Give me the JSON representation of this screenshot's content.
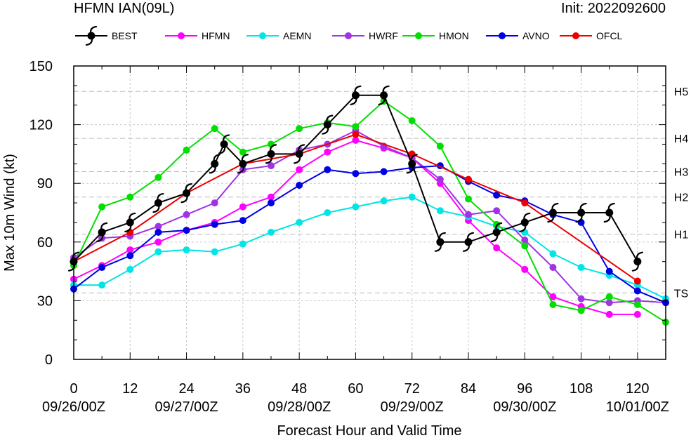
{
  "header": {
    "title": "HFMN IAN(09L)",
    "init": "Init: 2022092600"
  },
  "chart_data": {
    "type": "line",
    "xlabel": "Forecast Hour and Valid Time",
    "ylabel": "Max 10m Wind (kt)",
    "xlim": [
      0,
      126
    ],
    "ylim": [
      0,
      150
    ],
    "x_ticks": [
      0,
      12,
      24,
      36,
      48,
      60,
      72,
      84,
      96,
      108,
      120
    ],
    "y_ticks": [
      0,
      30,
      60,
      90,
      120,
      150
    ],
    "date_labels": [
      {
        "x": 0,
        "label": "09/26/00Z"
      },
      {
        "x": 24,
        "label": "09/27/00Z"
      },
      {
        "x": 48,
        "label": "09/28/00Z"
      },
      {
        "x": 72,
        "label": "09/29/00Z"
      },
      {
        "x": 96,
        "label": "09/30/00Z"
      },
      {
        "x": 120,
        "label": "10/01/00Z"
      }
    ],
    "category_lines": [
      {
        "label": "TS",
        "y": 34
      },
      {
        "label": "H1",
        "y": 64
      },
      {
        "label": "H2",
        "y": 83
      },
      {
        "label": "H3",
        "y": 96
      },
      {
        "label": "H4",
        "y": 113
      },
      {
        "label": "H5",
        "y": 137
      }
    ],
    "grid": true,
    "legend_position": "top",
    "series": [
      {
        "name": "BEST",
        "color": "#000000",
        "x": [
          0,
          6,
          12,
          18,
          24,
          30,
          32,
          36,
          42,
          48,
          54,
          60,
          66,
          72,
          78,
          84,
          90,
          96,
          102,
          108,
          114,
          120
        ],
        "y": [
          50,
          65,
          70,
          80,
          85,
          100,
          110,
          100,
          105,
          105,
          120,
          135,
          135,
          100,
          60,
          60,
          65,
          70,
          75,
          75,
          75,
          50
        ]
      },
      {
        "name": "HFMN",
        "color": "#ff00ff",
        "x": [
          0,
          6,
          12,
          18,
          24,
          30,
          36,
          42,
          48,
          54,
          60,
          66,
          72,
          78,
          84,
          90,
          96,
          102,
          108,
          114,
          120
        ],
        "y": [
          41,
          48,
          56,
          60,
          66,
          70,
          78,
          83,
          97,
          106,
          112,
          108,
          103,
          90,
          71,
          57,
          46,
          32,
          27,
          23,
          23
        ]
      },
      {
        "name": "AEMN",
        "color": "#00e5e5",
        "x": [
          0,
          6,
          12,
          18,
          24,
          30,
          36,
          42,
          48,
          54,
          60,
          66,
          72,
          78,
          84,
          90,
          96,
          102,
          108,
          114,
          120,
          126
        ],
        "y": [
          38,
          38,
          46,
          55,
          56,
          55,
          59,
          65,
          70,
          75,
          78,
          81,
          83,
          76,
          73,
          68,
          65,
          54,
          47,
          43,
          38,
          31
        ]
      },
      {
        "name": "HWRF",
        "color": "#a033e5",
        "x": [
          0,
          6,
          12,
          18,
          24,
          30,
          36,
          42,
          48,
          54,
          60,
          66,
          72,
          78,
          84,
          90,
          96,
          102,
          108,
          114,
          120,
          126
        ],
        "y": [
          52,
          62,
          63,
          68,
          74,
          80,
          97,
          99,
          107,
          110,
          117,
          109,
          103,
          92,
          74,
          76,
          61,
          47,
          31,
          29,
          30,
          29
        ]
      },
      {
        "name": "HMON",
        "color": "#00e000",
        "x": [
          0,
          6,
          12,
          18,
          24,
          30,
          36,
          42,
          48,
          54,
          60,
          66,
          72,
          78,
          84,
          90,
          96,
          102,
          108,
          114,
          120,
          126
        ],
        "y": [
          48,
          78,
          83,
          93,
          107,
          118,
          106,
          110,
          118,
          121,
          119,
          132,
          122,
          109,
          82,
          69,
          58,
          28,
          25,
          32,
          28,
          19
        ]
      },
      {
        "name": "AVNO",
        "color": "#0000e5",
        "x": [
          0,
          6,
          12,
          18,
          24,
          30,
          36,
          42,
          48,
          54,
          60,
          66,
          72,
          78,
          84,
          90,
          96,
          102,
          108,
          114,
          120,
          126
        ],
        "y": [
          36,
          47,
          53,
          65,
          66,
          69,
          71,
          80,
          89,
          97,
          95,
          96,
          98,
          99,
          91,
          84,
          81,
          74,
          70,
          45,
          35,
          29
        ]
      },
      {
        "name": "OFCL",
        "color": "#ee0000",
        "x": [
          0,
          12,
          24,
          36,
          48,
          60,
          72,
          84,
          96,
          120
        ],
        "y": [
          50,
          65,
          85,
          100,
          105,
          115,
          105,
          92,
          80,
          40
        ]
      }
    ]
  }
}
